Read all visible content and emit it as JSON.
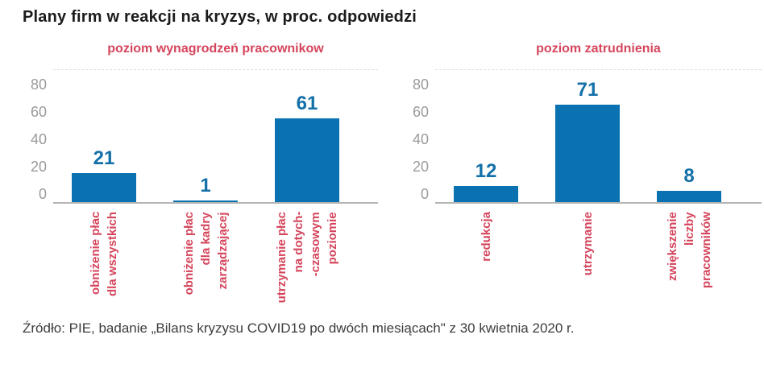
{
  "page": {
    "title": "Plany firm w reakcji na kryzys, w proc. odpowiedzi",
    "source": "Źródło: PIE, badanie „Bilans kryzysu COVID19 po dwóch miesiącach\" z 30 kwietnia 2020 r."
  },
  "colors": {
    "bar": "#0b72b1",
    "value_label": "#1470a8",
    "subtitle": "#d5455c",
    "category_label": "#d5455c",
    "axis_line": "#b5b5b5",
    "tick_label": "#9b9b9b",
    "title_text": "#1b1b1b",
    "source_text": "#3d3d3d"
  },
  "chart_data": [
    {
      "type": "bar",
      "title": "poziom wynagrodzeń pracownikow",
      "categories": [
        [
          "obniżenie płac",
          "dla wszystkich"
        ],
        [
          "obniżenie płac",
          "dla kadry",
          "zarządzającej"
        ],
        [
          "utrzymanie płac",
          "na dotych-",
          "-czasowym",
          "poziomie"
        ]
      ],
      "values": [
        21,
        1,
        61
      ],
      "xlabel": "",
      "ylabel": "",
      "ylim": [
        0,
        80
      ],
      "yticks": [
        0,
        20,
        40,
        60,
        80
      ],
      "grid": false,
      "legend": "none",
      "value_labels_shown": true
    },
    {
      "type": "bar",
      "title": "poziom zatrudnienia",
      "categories": [
        [
          "redukcja"
        ],
        [
          "utrzymanie"
        ],
        [
          "zwiększenie",
          "liczby",
          "pracowników"
        ]
      ],
      "values": [
        12,
        71,
        8
      ],
      "xlabel": "",
      "ylabel": "",
      "ylim": [
        0,
        80
      ],
      "yticks": [
        0,
        20,
        40,
        60,
        80
      ],
      "grid": false,
      "legend": "none",
      "value_labels_shown": true
    }
  ]
}
